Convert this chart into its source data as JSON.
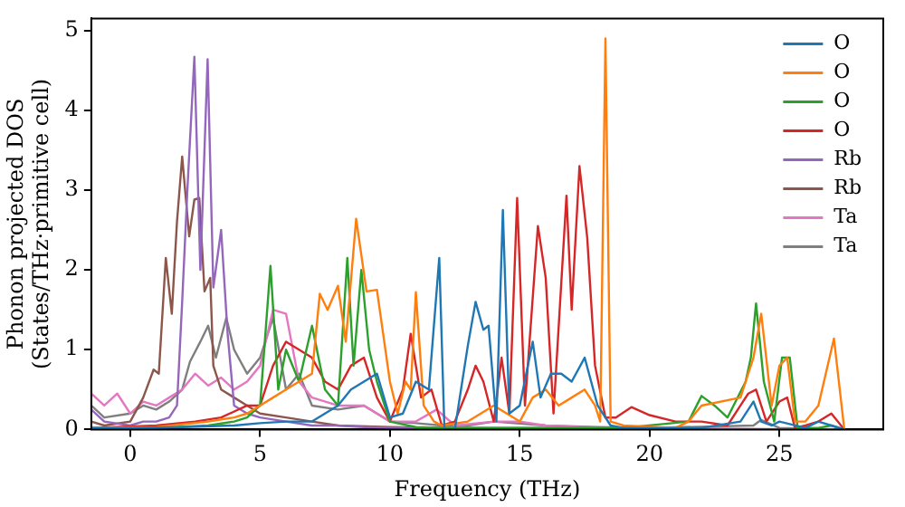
{
  "chart_data": {
    "type": "line",
    "xlabel": "Frequency (THz)",
    "ylabel": "Phonon projected DOS\n(States/THz·primitive cell)",
    "xlim": [
      -1.5,
      29
    ],
    "xticks": [
      0,
      5,
      10,
      15,
      20,
      25
    ],
    "ylim": [
      0,
      5.15
    ],
    "yticks": [
      0,
      1,
      2,
      3,
      4,
      5
    ],
    "grid": false,
    "legend": "top right",
    "marker": "none",
    "line_style": "solid",
    "series": [
      {
        "name": "O",
        "color": "#1f77b4",
        "x": [
          -1.5,
          0,
          2,
          4,
          5,
          6,
          7,
          7.5,
          8,
          8.5,
          9,
          9.5,
          10,
          10.5,
          11,
          11.5,
          11.9,
          12.1,
          12.5,
          13,
          13.3,
          13.6,
          13.8,
          14.1,
          14.35,
          14.6,
          15,
          15.5,
          15.8,
          16.2,
          16.6,
          17,
          17.5,
          18,
          18.5,
          19,
          22,
          23.5,
          24,
          24.3,
          24.7,
          25,
          26,
          26.5,
          27,
          27.5
        ],
        "values": [
          0.02,
          0.02,
          0.03,
          0.05,
          0.08,
          0.1,
          0.1,
          0.2,
          0.3,
          0.5,
          0.6,
          0.7,
          0.15,
          0.2,
          0.6,
          0.5,
          2.15,
          0,
          0,
          1.05,
          1.6,
          1.25,
          1.3,
          0.1,
          2.75,
          0.2,
          0.3,
          1.1,
          0.4,
          0.7,
          0.7,
          0.6,
          0.9,
          0.3,
          0.05,
          0.02,
          0.02,
          0.1,
          0.35,
          0.1,
          0.05,
          0.1,
          0.02,
          0.1,
          0.05,
          0
        ]
      },
      {
        "name": "O",
        "color": "#ff7f0e",
        "x": [
          -1.5,
          1,
          3,
          4,
          4.5,
          5,
          5.5,
          6,
          6.5,
          7,
          7.3,
          7.6,
          8,
          8.3,
          8.7,
          9.1,
          9.5,
          10,
          10.3,
          10.6,
          10.8,
          11.0,
          11.3,
          11.7,
          12,
          13,
          13.5,
          14,
          14.5,
          15,
          15.5,
          16,
          16.5,
          17,
          17.5,
          17.9,
          18.1,
          18.3,
          18.5,
          19,
          21,
          21.5,
          22,
          23.5,
          24,
          24.3,
          24.7,
          25,
          25.3,
          25.6,
          26,
          26.5,
          27.1,
          27.5
        ],
        "values": [
          0.02,
          0.03,
          0.1,
          0.15,
          0.2,
          0.3,
          0.4,
          0.5,
          0.6,
          0.7,
          1.7,
          1.5,
          1.8,
          1.1,
          2.64,
          1.73,
          1.75,
          0.6,
          0.2,
          0.6,
          0.5,
          1.72,
          0.3,
          0.1,
          0.05,
          0.1,
          0.2,
          0.3,
          0.2,
          0.1,
          0.4,
          0.5,
          0.3,
          0.4,
          0.5,
          0.3,
          0.1,
          4.9,
          0.1,
          0.05,
          0.02,
          0.1,
          0.3,
          0.4,
          0.9,
          1.45,
          0.3,
          0.8,
          0.9,
          0.1,
          0.1,
          0.3,
          1.14,
          0
        ]
      },
      {
        "name": "O",
        "color": "#2ca02c",
        "x": [
          -1.5,
          1,
          3,
          4,
          4.5,
          5,
          5.4,
          5.7,
          6,
          6.5,
          7,
          7.5,
          8,
          8.36,
          8.6,
          8.9,
          9.2,
          9.5,
          10,
          11,
          12,
          13,
          15,
          17,
          19,
          21.5,
          22,
          22.5,
          23,
          23.7,
          23.9,
          24.1,
          24.4,
          24.8,
          25.1,
          25.4,
          25.7,
          26.5,
          27,
          27.5
        ],
        "values": [
          0.01,
          0.02,
          0.05,
          0.1,
          0.15,
          0.3,
          2.05,
          0.5,
          1.0,
          0.6,
          1.3,
          0.5,
          0.3,
          2.15,
          0.8,
          2.0,
          1.0,
          0.6,
          0.1,
          0.03,
          0.02,
          0.02,
          0.02,
          0.02,
          0.02,
          0.1,
          0.42,
          0.3,
          0.15,
          0.6,
          0.9,
          1.58,
          0.6,
          0.1,
          0.9,
          0.9,
          0.02,
          0.02,
          0.05,
          0
        ]
      },
      {
        "name": "O",
        "color": "#d62728",
        "x": [
          -1.5,
          1,
          2.5,
          3.5,
          4.5,
          5,
          5.5,
          6,
          6.5,
          7,
          7.5,
          8,
          8.5,
          9,
          9.5,
          10,
          10.5,
          10.8,
          11.2,
          11.6,
          12,
          12.5,
          13,
          13.3,
          13.6,
          14,
          14.3,
          14.6,
          14.9,
          15.2,
          15.7,
          16.0,
          16.3,
          16.8,
          17.0,
          17.3,
          17.6,
          17.9,
          18.3,
          18.7,
          19.3,
          20,
          21,
          22,
          23,
          23.5,
          23.8,
          24.1,
          24.5,
          25.0,
          25.3,
          25.6,
          26,
          26.5,
          27,
          27.5
        ],
        "values": [
          0.02,
          0.05,
          0.1,
          0.15,
          0.3,
          0.3,
          0.8,
          1.1,
          1.0,
          0.9,
          0.6,
          0.5,
          0.8,
          0.9,
          0.4,
          0.1,
          0.5,
          1.2,
          0.4,
          0.5,
          0.05,
          0.1,
          0.5,
          0.8,
          0.6,
          0.1,
          0.9,
          0.2,
          2.9,
          0.3,
          2.55,
          1.9,
          0.2,
          2.93,
          1.5,
          3.3,
          2.4,
          0.8,
          0.15,
          0.15,
          0.28,
          0.18,
          0.1,
          0.1,
          0.05,
          0.3,
          0.45,
          0.5,
          0.1,
          0.35,
          0.4,
          0.02,
          0.05,
          0.1,
          0.2,
          0
        ]
      },
      {
        "name": "Rb",
        "color": "#9467bd",
        "x": [
          -1.5,
          -1,
          0,
          0.5,
          1,
          1.5,
          1.8,
          2.0,
          2.2,
          2.47,
          2.7,
          2.98,
          3.2,
          3.5,
          3.75,
          4,
          4.5,
          5,
          6,
          7,
          8,
          9,
          10,
          11,
          15,
          20,
          27.5
        ],
        "values": [
          0.25,
          0.1,
          0.05,
          0.1,
          0.1,
          0.15,
          0.3,
          1.6,
          3.0,
          4.67,
          2.0,
          4.64,
          1.78,
          2.5,
          1.2,
          0.3,
          0.2,
          0.15,
          0.1,
          0.05,
          0.05,
          0.03,
          0.02,
          0.02,
          0.01,
          0.01,
          0
        ]
      },
      {
        "name": "Rb",
        "color": "#8c564b",
        "x": [
          -1.5,
          -1,
          0,
          0.5,
          0.9,
          1.1,
          1.37,
          1.6,
          1.8,
          2.0,
          2.27,
          2.47,
          2.66,
          2.86,
          3.08,
          3.2,
          3.5,
          4,
          4.5,
          5,
          6,
          7,
          8,
          10,
          12,
          15,
          20,
          27.5
        ],
        "values": [
          0.1,
          0.05,
          0.1,
          0.4,
          0.75,
          0.7,
          2.15,
          1.45,
          2.6,
          3.42,
          2.42,
          2.88,
          2.9,
          1.73,
          1.9,
          0.8,
          0.5,
          0.4,
          0.3,
          0.2,
          0.15,
          0.1,
          0.05,
          0.03,
          0.02,
          0.02,
          0.01,
          0
        ]
      },
      {
        "name": "Ta",
        "color": "#e377c2",
        "x": [
          -1.5,
          -1,
          -0.5,
          0,
          0.5,
          1,
          1.5,
          2,
          2.5,
          3,
          3.5,
          4,
          4.5,
          5,
          5.5,
          6,
          6.5,
          7,
          8,
          9,
          10,
          11,
          11.8,
          12.5,
          14,
          15,
          16,
          18
        ],
        "values": [
          0.45,
          0.3,
          0.45,
          0.2,
          0.35,
          0.3,
          0.4,
          0.5,
          0.7,
          0.55,
          0.65,
          0.5,
          0.6,
          0.8,
          1.5,
          1.45,
          0.6,
          0.4,
          0.3,
          0.3,
          0.1,
          0.1,
          0.25,
          0.05,
          0.1,
          0.1,
          0.05,
          0.02
        ]
      },
      {
        "name": "Ta",
        "color": "#7f7f7f",
        "x": [
          -1.5,
          -1,
          0,
          0.5,
          1,
          1.5,
          2,
          2.3,
          2.7,
          3,
          3.3,
          3.7,
          4,
          4.5,
          5,
          5.5,
          6,
          6.5,
          7,
          8,
          9,
          10,
          11,
          12,
          13,
          14,
          16,
          18,
          20,
          24,
          24.3,
          25,
          27.5
        ],
        "values": [
          0.3,
          0.15,
          0.2,
          0.3,
          0.25,
          0.35,
          0.5,
          0.85,
          1.1,
          1.3,
          0.9,
          1.4,
          1.0,
          0.7,
          0.9,
          1.4,
          0.5,
          0.7,
          0.3,
          0.25,
          0.3,
          0.1,
          0.08,
          0.05,
          0.05,
          0.1,
          0.05,
          0.03,
          0.02,
          0.05,
          0.12,
          0.02,
          0
        ]
      }
    ]
  }
}
